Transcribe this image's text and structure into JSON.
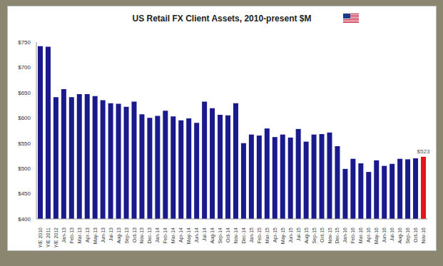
{
  "chart_data": {
    "type": "bar",
    "title": "US Retail FX Client Assets, 2010-present $M",
    "categories": [
      "Y/E 2010",
      "Y/E 2011",
      "Y/E 2012",
      "Jan-13",
      "Feb-13",
      "Mar-13",
      "Apr-13",
      "May-13",
      "Jun-13",
      "Jul-13",
      "Aug-13",
      "Sep-13",
      "Oct-13",
      "Nov-13",
      "Dec-13",
      "Jan-14",
      "Feb-14",
      "Mar-14",
      "Apr-14",
      "May-14",
      "Jun-14",
      "Jul-14",
      "Aug-14",
      "Sep-14",
      "Oct-14",
      "Nov-14",
      "Dec-14",
      "Jan-15",
      "Feb-15",
      "Mar-15",
      "Apr-15",
      "May-15",
      "Jun-15",
      "Jul-15",
      "Aug-15",
      "Sep-15",
      "Oct-15",
      "Nov-15",
      "Dec-15",
      "Jan-16",
      "Feb-16",
      "Mar-16",
      "Apr-16",
      "May-16",
      "Jun-16",
      "Jul-16",
      "Aug-16",
      "Sep-16",
      "Oct-16",
      "Nov-16"
    ],
    "values": [
      742,
      741,
      641,
      657,
      641,
      647,
      647,
      643,
      635,
      629,
      628,
      622,
      632,
      607,
      600,
      604,
      614,
      603,
      595,
      599,
      590,
      632,
      619,
      606,
      605,
      629,
      550,
      567,
      565,
      579,
      562,
      567,
      561,
      578,
      553,
      567,
      568,
      571,
      544,
      499,
      519,
      510,
      493,
      516,
      505,
      509,
      519,
      518,
      520,
      523
    ],
    "value_labels": [
      null,
      null,
      null,
      null,
      null,
      null,
      null,
      null,
      null,
      null,
      null,
      null,
      null,
      null,
      null,
      null,
      null,
      null,
      null,
      null,
      null,
      null,
      null,
      null,
      null,
      null,
      null,
      null,
      null,
      null,
      null,
      null,
      null,
      null,
      null,
      null,
      null,
      null,
      null,
      null,
      null,
      null,
      null,
      null,
      null,
      null,
      null,
      null,
      null,
      "$523"
    ],
    "data_labels": true,
    "colors": [
      "#1a1a8c",
      "#1a1a8c",
      "#1a1a8c",
      "#1a1a8c",
      "#1a1a8c",
      "#1a1a8c",
      "#1a1a8c",
      "#1a1a8c",
      "#1a1a8c",
      "#1a1a8c",
      "#1a1a8c",
      "#1a1a8c",
      "#1a1a8c",
      "#1a1a8c",
      "#1a1a8c",
      "#1a1a8c",
      "#1a1a8c",
      "#1a1a8c",
      "#1a1a8c",
      "#1a1a8c",
      "#1a1a8c",
      "#1a1a8c",
      "#1a1a8c",
      "#1a1a8c",
      "#1a1a8c",
      "#1a1a8c",
      "#1a1a8c",
      "#1a1a8c",
      "#1a1a8c",
      "#1a1a8c",
      "#1a1a8c",
      "#1a1a8c",
      "#1a1a8c",
      "#1a1a8c",
      "#1a1a8c",
      "#1a1a8c",
      "#1a1a8c",
      "#1a1a8c",
      "#1a1a8c",
      "#1a1a8c",
      "#1a1a8c",
      "#1a1a8c",
      "#1a1a8c",
      "#1a1a8c",
      "#1a1a8c",
      "#1a1a8c",
      "#1a1a8c",
      "#1a1a8c",
      "#1a1a8c",
      "#e8141b"
    ],
    "ylim": [
      400,
      750
    ],
    "yticks": [
      {
        "value": 400,
        "label": "$400"
      },
      {
        "value": 450,
        "label": "$450"
      },
      {
        "value": 500,
        "label": "$500"
      },
      {
        "value": 550,
        "label": "$550"
      },
      {
        "value": 600,
        "label": "$600"
      },
      {
        "value": 650,
        "label": "$650"
      },
      {
        "value": 700,
        "label": "$700"
      },
      {
        "value": 750,
        "label": "$750"
      }
    ],
    "grid": false
  }
}
